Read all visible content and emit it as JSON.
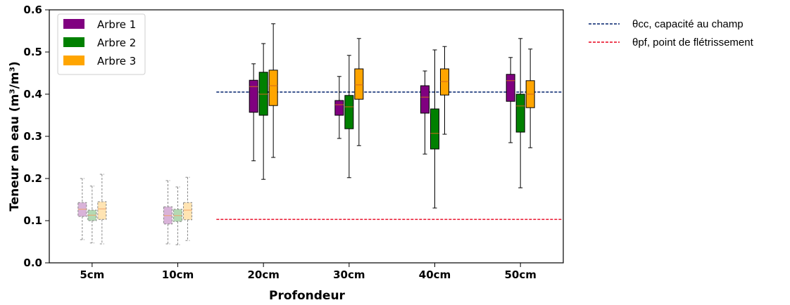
{
  "chart_data": {
    "type": "box",
    "xlabel": "Profondeur",
    "ylabel": "Teneur en eau (m³/m³)",
    "ylim": [
      0.0,
      0.6
    ],
    "yticks": [
      "0.0",
      "0.1",
      "0.2",
      "0.3",
      "0.4",
      "0.5",
      "0.6"
    ],
    "categories": [
      "5cm",
      "10cm",
      "20cm",
      "30cm",
      "40cm",
      "50cm"
    ],
    "grid": false,
    "legend_position": "top-left",
    "series": [
      {
        "name": "Arbre 1",
        "color": "#800080",
        "boxes": [
          {
            "whislo": 0.055,
            "q1": 0.11,
            "med": 0.127,
            "q3": 0.143,
            "whishi": 0.2,
            "faded": true
          },
          {
            "whislo": 0.045,
            "q1": 0.092,
            "med": 0.112,
            "q3": 0.133,
            "whishi": 0.195,
            "faded": true
          },
          {
            "whislo": 0.242,
            "q1": 0.357,
            "med": 0.418,
            "q3": 0.433,
            "whishi": 0.472,
            "faded": false
          },
          {
            "whislo": 0.295,
            "q1": 0.35,
            "med": 0.375,
            "q3": 0.385,
            "whishi": 0.442,
            "faded": false
          },
          {
            "whislo": 0.258,
            "q1": 0.355,
            "med": 0.393,
            "q3": 0.42,
            "whishi": 0.455,
            "faded": false
          },
          {
            "whislo": 0.285,
            "q1": 0.383,
            "med": 0.432,
            "q3": 0.447,
            "whishi": 0.487,
            "faded": false
          }
        ]
      },
      {
        "name": "Arbre 2",
        "color": "#008000",
        "boxes": [
          {
            "whislo": 0.047,
            "q1": 0.1,
            "med": 0.113,
            "q3": 0.125,
            "whishi": 0.182,
            "faded": true
          },
          {
            "whislo": 0.043,
            "q1": 0.098,
            "med": 0.112,
            "q3": 0.127,
            "whishi": 0.18,
            "faded": true
          },
          {
            "whislo": 0.198,
            "q1": 0.35,
            "med": 0.4,
            "q3": 0.452,
            "whishi": 0.52,
            "faded": false
          },
          {
            "whislo": 0.202,
            "q1": 0.318,
            "med": 0.37,
            "q3": 0.397,
            "whishi": 0.492,
            "faded": false
          },
          {
            "whislo": 0.13,
            "q1": 0.27,
            "med": 0.307,
            "q3": 0.365,
            "whishi": 0.505,
            "faded": false
          },
          {
            "whislo": 0.178,
            "q1": 0.31,
            "med": 0.372,
            "q3": 0.4,
            "whishi": 0.532,
            "faded": false
          }
        ]
      },
      {
        "name": "Arbre 3",
        "color": "#FFA500",
        "boxes": [
          {
            "whislo": 0.045,
            "q1": 0.103,
            "med": 0.128,
            "q3": 0.145,
            "whishi": 0.21,
            "faded": true
          },
          {
            "whislo": 0.053,
            "q1": 0.102,
            "med": 0.125,
            "q3": 0.143,
            "whishi": 0.203,
            "faded": true
          },
          {
            "whislo": 0.25,
            "q1": 0.373,
            "med": 0.42,
            "q3": 0.457,
            "whishi": 0.567,
            "faded": false
          },
          {
            "whislo": 0.278,
            "q1": 0.388,
            "med": 0.422,
            "q3": 0.46,
            "whishi": 0.532,
            "faded": false
          },
          {
            "whislo": 0.305,
            "q1": 0.398,
            "med": 0.43,
            "q3": 0.46,
            "whishi": 0.513,
            "faded": false
          },
          {
            "whislo": 0.273,
            "q1": 0.368,
            "med": 0.4,
            "q3": 0.432,
            "whishi": 0.507,
            "faded": false
          }
        ]
      }
    ],
    "reference_lines": [
      {
        "label": "θcc, capacité au champ",
        "value": 0.405,
        "x_start_category": "20cm",
        "color": "#00206B"
      },
      {
        "label": "θpf, point de flétrissement",
        "value": 0.103,
        "x_start_category": "20cm",
        "color": "#E8001C"
      }
    ]
  }
}
